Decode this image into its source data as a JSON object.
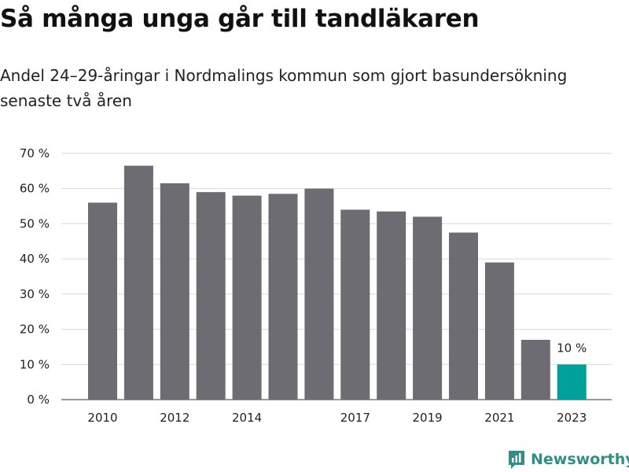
{
  "title": "Så många unga går till tandläkaren",
  "subtitle": "Andel 24–29-åringar i Nordmalings kommun som gjort basundersökning senaste två åren",
  "brand": "Newsworthy",
  "colors": {
    "bar": "#6d6c72",
    "highlight": "#00a19a",
    "grid": "#d9d9d9",
    "brand": "#2f8f86"
  },
  "chart_data": {
    "type": "bar",
    "categories": [
      "2010",
      "2011",
      "2012",
      "2013",
      "2014",
      "2015",
      "2016",
      "2017",
      "2018",
      "2019",
      "2020",
      "2021",
      "2022",
      "2023"
    ],
    "tick_labels": [
      "2010",
      "",
      "2012",
      "",
      "2014",
      "",
      "",
      "2017",
      "",
      "2019",
      "",
      "2021",
      "",
      "2023"
    ],
    "values": [
      56,
      66.5,
      61.5,
      59,
      58,
      58.5,
      60,
      54,
      53.5,
      52,
      47.5,
      39,
      17,
      10
    ],
    "highlight_index": 13,
    "data_labels": [
      {
        "index": 13,
        "text": "10 %"
      }
    ],
    "yticks": [
      "0 %",
      "10 %",
      "20 %",
      "30 %",
      "40 %",
      "50 %",
      "60 %",
      "70 %"
    ],
    "ylim": [
      0,
      70
    ],
    "grid": true
  }
}
